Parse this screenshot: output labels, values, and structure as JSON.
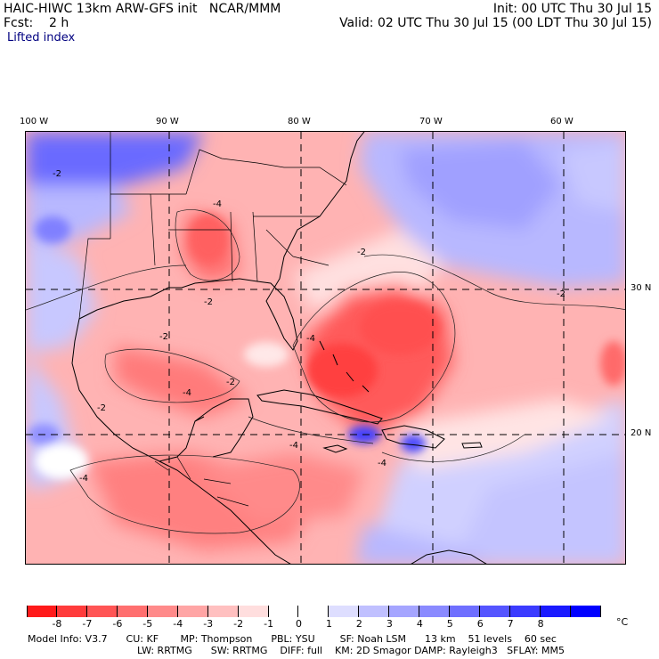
{
  "header": {
    "model_title": "HAIC-HIWC 13km ARW-GFS init   NCAR/MMM",
    "forecast": "Fcst:    2 h",
    "variable": "Lifted index",
    "init": "Init: 00 UTC Thu 30 Jul 15",
    "valid": "Valid: 02 UTC Thu 30 Jul 15 (00 LDT Thu 30 Jul 15)"
  },
  "map": {
    "lon_labels": [
      "100 W",
      "90 W",
      "80 W",
      "70 W",
      "60 W"
    ],
    "lat_labels": [
      "30 N",
      "20 N"
    ],
    "contour_labels": [
      "-2",
      "-4",
      "-2",
      "-2",
      "-4",
      "-4",
      "-2",
      "-2",
      "-4",
      "-2",
      "-4",
      "-2",
      "-4"
    ],
    "colors": {
      "land_border": "#000000",
      "gridline": "#000000"
    }
  },
  "colorbar": {
    "colors": [
      "#ff1a1a",
      "#ff3b3b",
      "#ff5555",
      "#ff6f6f",
      "#ff8a8a",
      "#ffa5a5",
      "#ffc0c0",
      "#ffdede",
      "#ffffff",
      "#ffffff",
      "#dedeff",
      "#c0c0ff",
      "#a5a5ff",
      "#8a8aff",
      "#6f6fff",
      "#5555ff",
      "#3b3bff",
      "#1a1aff",
      "#0000ff"
    ],
    "ticks": [
      "-8",
      "-7",
      "-6",
      "-5",
      "-4",
      "-3",
      "-2",
      "-1",
      "0",
      "1",
      "2",
      "3",
      "4",
      "5",
      "6",
      "7",
      "8"
    ],
    "unit": "°C"
  },
  "footer": {
    "line1": "Model Info: V3.7      CU: KF       MP: Thompson      PBL: YSU        SF: Noah LSM      13 km    51 levels    60 sec",
    "line2": "LW: RRTMG      SW: RRTMG    DIFF: full    KM: 2D Smagor DAMP: Rayleigh3   SFLAY: MM5"
  }
}
